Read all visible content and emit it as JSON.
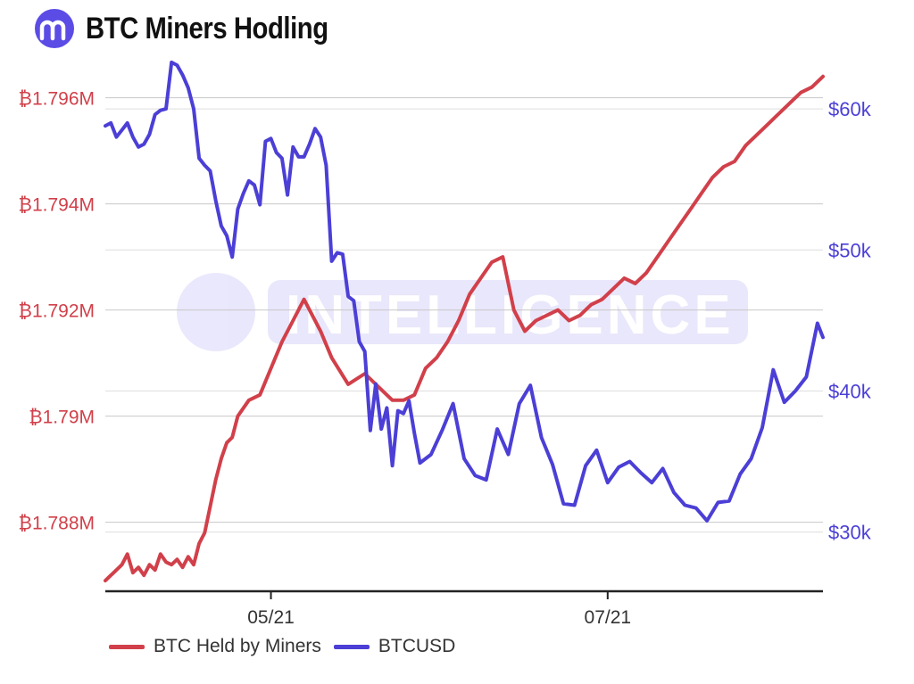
{
  "header": {
    "title": "BTC Miners Hodling"
  },
  "watermark": {
    "text": "INTELLIGENCE"
  },
  "colors": {
    "miners": "#d1404a",
    "btcusd": "#4b3fd6",
    "grid": "#c8c8c8",
    "logo": "#5b4ce6",
    "watermark": "#5b4ce6"
  },
  "chart_data": {
    "type": "line",
    "title": "BTC Miners Hodling",
    "x_ticks": [
      "05/21",
      "07/21"
    ],
    "x_range": [
      "2021-04-01",
      "2021-08-09"
    ],
    "y_left": {
      "ticks": [
        "₿1.788M",
        "₿1.79M",
        "₿1.792M",
        "₿1.794M",
        "₿1.796M"
      ],
      "tick_values": [
        1.788,
        1.79,
        1.792,
        1.794,
        1.796
      ],
      "range": [
        1.7867,
        1.7968
      ],
      "unit": "M BTC"
    },
    "y_right": {
      "ticks": [
        "$30k",
        "$40k",
        "$50k",
        "$60k"
      ],
      "tick_values": [
        30,
        40,
        50,
        60
      ],
      "range": [
        25.8,
        63.8
      ],
      "unit": "k USD"
    },
    "grid": true,
    "legend_position": "bottom-left",
    "series": [
      {
        "name": "BTC Held by Miners",
        "axis": "left",
        "color": "#d1404a",
        "x": [
          "2021-04-01",
          "2021-04-02",
          "2021-04-03",
          "2021-04-04",
          "2021-04-05",
          "2021-04-06",
          "2021-04-07",
          "2021-04-08",
          "2021-04-09",
          "2021-04-10",
          "2021-04-11",
          "2021-04-12",
          "2021-04-13",
          "2021-04-14",
          "2021-04-15",
          "2021-04-16",
          "2021-04-17",
          "2021-04-18",
          "2021-04-19",
          "2021-04-20",
          "2021-04-21",
          "2021-04-22",
          "2021-04-23",
          "2021-04-24",
          "2021-04-25",
          "2021-04-27",
          "2021-04-29",
          "2021-05-01",
          "2021-05-03",
          "2021-05-05",
          "2021-05-07",
          "2021-05-10",
          "2021-05-12",
          "2021-05-15",
          "2021-05-18",
          "2021-05-20",
          "2021-05-23",
          "2021-05-25",
          "2021-05-27",
          "2021-05-29",
          "2021-05-31",
          "2021-06-02",
          "2021-06-04",
          "2021-06-06",
          "2021-06-08",
          "2021-06-10",
          "2021-06-12",
          "2021-06-14",
          "2021-06-16",
          "2021-06-18",
          "2021-06-20",
          "2021-06-22",
          "2021-06-24",
          "2021-06-26",
          "2021-06-28",
          "2021-06-30",
          "2021-07-02",
          "2021-07-04",
          "2021-07-06",
          "2021-07-08",
          "2021-07-10",
          "2021-07-12",
          "2021-07-14",
          "2021-07-16",
          "2021-07-18",
          "2021-07-20",
          "2021-07-22",
          "2021-07-24",
          "2021-07-26",
          "2021-07-28",
          "2021-07-30",
          "2021-08-01",
          "2021-08-03",
          "2021-08-05",
          "2021-08-07",
          "2021-08-09"
        ],
        "values": [
          1.7869,
          1.787,
          1.7871,
          1.7872,
          1.7874,
          1.78705,
          1.78715,
          1.787,
          1.7872,
          1.7871,
          1.7874,
          1.78725,
          1.7872,
          1.7873,
          1.78715,
          1.78735,
          1.7872,
          1.7876,
          1.7878,
          1.7883,
          1.7888,
          1.7892,
          1.7895,
          1.7896,
          1.79,
          1.7903,
          1.7904,
          1.7909,
          1.7914,
          1.7918,
          1.7922,
          1.7916,
          1.7911,
          1.7906,
          1.7908,
          1.7906,
          1.7903,
          1.7903,
          1.7904,
          1.7909,
          1.7911,
          1.7914,
          1.7918,
          1.7923,
          1.7926,
          1.7929,
          1.793,
          1.792,
          1.7916,
          1.7918,
          1.7919,
          1.792,
          1.7918,
          1.7919,
          1.7921,
          1.7922,
          1.7924,
          1.7926,
          1.7925,
          1.7927,
          1.793,
          1.7933,
          1.7936,
          1.7939,
          1.7942,
          1.7945,
          1.7947,
          1.7948,
          1.7951,
          1.7953,
          1.7955,
          1.7957,
          1.7959,
          1.7961,
          1.7962,
          1.7964
        ]
      },
      {
        "name": "BTCUSD",
        "axis": "right",
        "color": "#4b3fd6",
        "x": [
          "2021-04-01",
          "2021-04-02",
          "2021-04-03",
          "2021-04-04",
          "2021-04-05",
          "2021-04-06",
          "2021-04-07",
          "2021-04-08",
          "2021-04-09",
          "2021-04-10",
          "2021-04-11",
          "2021-04-12",
          "2021-04-13",
          "2021-04-14",
          "2021-04-15",
          "2021-04-16",
          "2021-04-17",
          "2021-04-18",
          "2021-04-19",
          "2021-04-20",
          "2021-04-21",
          "2021-04-22",
          "2021-04-23",
          "2021-04-24",
          "2021-04-25",
          "2021-04-26",
          "2021-04-27",
          "2021-04-28",
          "2021-04-29",
          "2021-04-30",
          "2021-05-01",
          "2021-05-02",
          "2021-05-03",
          "2021-05-04",
          "2021-05-05",
          "2021-05-06",
          "2021-05-07",
          "2021-05-08",
          "2021-05-09",
          "2021-05-10",
          "2021-05-11",
          "2021-05-12",
          "2021-05-13",
          "2021-05-14",
          "2021-05-15",
          "2021-05-16",
          "2021-05-17",
          "2021-05-18",
          "2021-05-19",
          "2021-05-20",
          "2021-05-21",
          "2021-05-22",
          "2021-05-23",
          "2021-05-24",
          "2021-05-25",
          "2021-05-26",
          "2021-05-27",
          "2021-05-28",
          "2021-05-30",
          "2021-06-01",
          "2021-06-03",
          "2021-06-05",
          "2021-06-07",
          "2021-06-09",
          "2021-06-11",
          "2021-06-13",
          "2021-06-15",
          "2021-06-17",
          "2021-06-19",
          "2021-06-21",
          "2021-06-23",
          "2021-06-25",
          "2021-06-27",
          "2021-06-29",
          "2021-07-01",
          "2021-07-03",
          "2021-07-05",
          "2021-07-07",
          "2021-07-09",
          "2021-07-11",
          "2021-07-13",
          "2021-07-15",
          "2021-07-17",
          "2021-07-19",
          "2021-07-21",
          "2021-07-23",
          "2021-07-25",
          "2021-07-27",
          "2021-07-29",
          "2021-07-31",
          "2021-08-02",
          "2021-08-04",
          "2021-08-06",
          "2021-08-08",
          "2021-08-09"
        ],
        "values": [
          58.8,
          59.0,
          58.0,
          58.5,
          59.0,
          58.0,
          57.3,
          57.5,
          58.2,
          59.6,
          59.9,
          60.0,
          63.3,
          63.1,
          62.4,
          61.5,
          60.0,
          56.5,
          56.0,
          55.6,
          53.5,
          51.7,
          51.0,
          49.5,
          52.9,
          54.0,
          54.9,
          54.6,
          53.2,
          57.7,
          57.9,
          56.9,
          56.5,
          53.9,
          57.3,
          56.6,
          56.6,
          57.5,
          58.6,
          58.0,
          56.0,
          49.2,
          49.8,
          49.7,
          46.7,
          46.4,
          43.5,
          42.8,
          37.2,
          40.5,
          37.3,
          38.8,
          34.7,
          38.6,
          38.4,
          39.3,
          37.0,
          34.9,
          35.5,
          37.2,
          39.1,
          35.2,
          34.0,
          33.7,
          37.3,
          35.5,
          39.1,
          40.4,
          36.7,
          34.8,
          32.0,
          31.9,
          34.7,
          35.8,
          33.5,
          34.6,
          35.0,
          34.2,
          33.5,
          34.5,
          32.8,
          31.9,
          31.7,
          30.8,
          32.1,
          32.2,
          34.1,
          35.2,
          37.4,
          41.5,
          39.2,
          40.0,
          41.0,
          44.8,
          43.8
        ]
      }
    ]
  },
  "legend": {
    "miners_label": "BTC Held by Miners",
    "btcusd_label": "BTCUSD"
  }
}
